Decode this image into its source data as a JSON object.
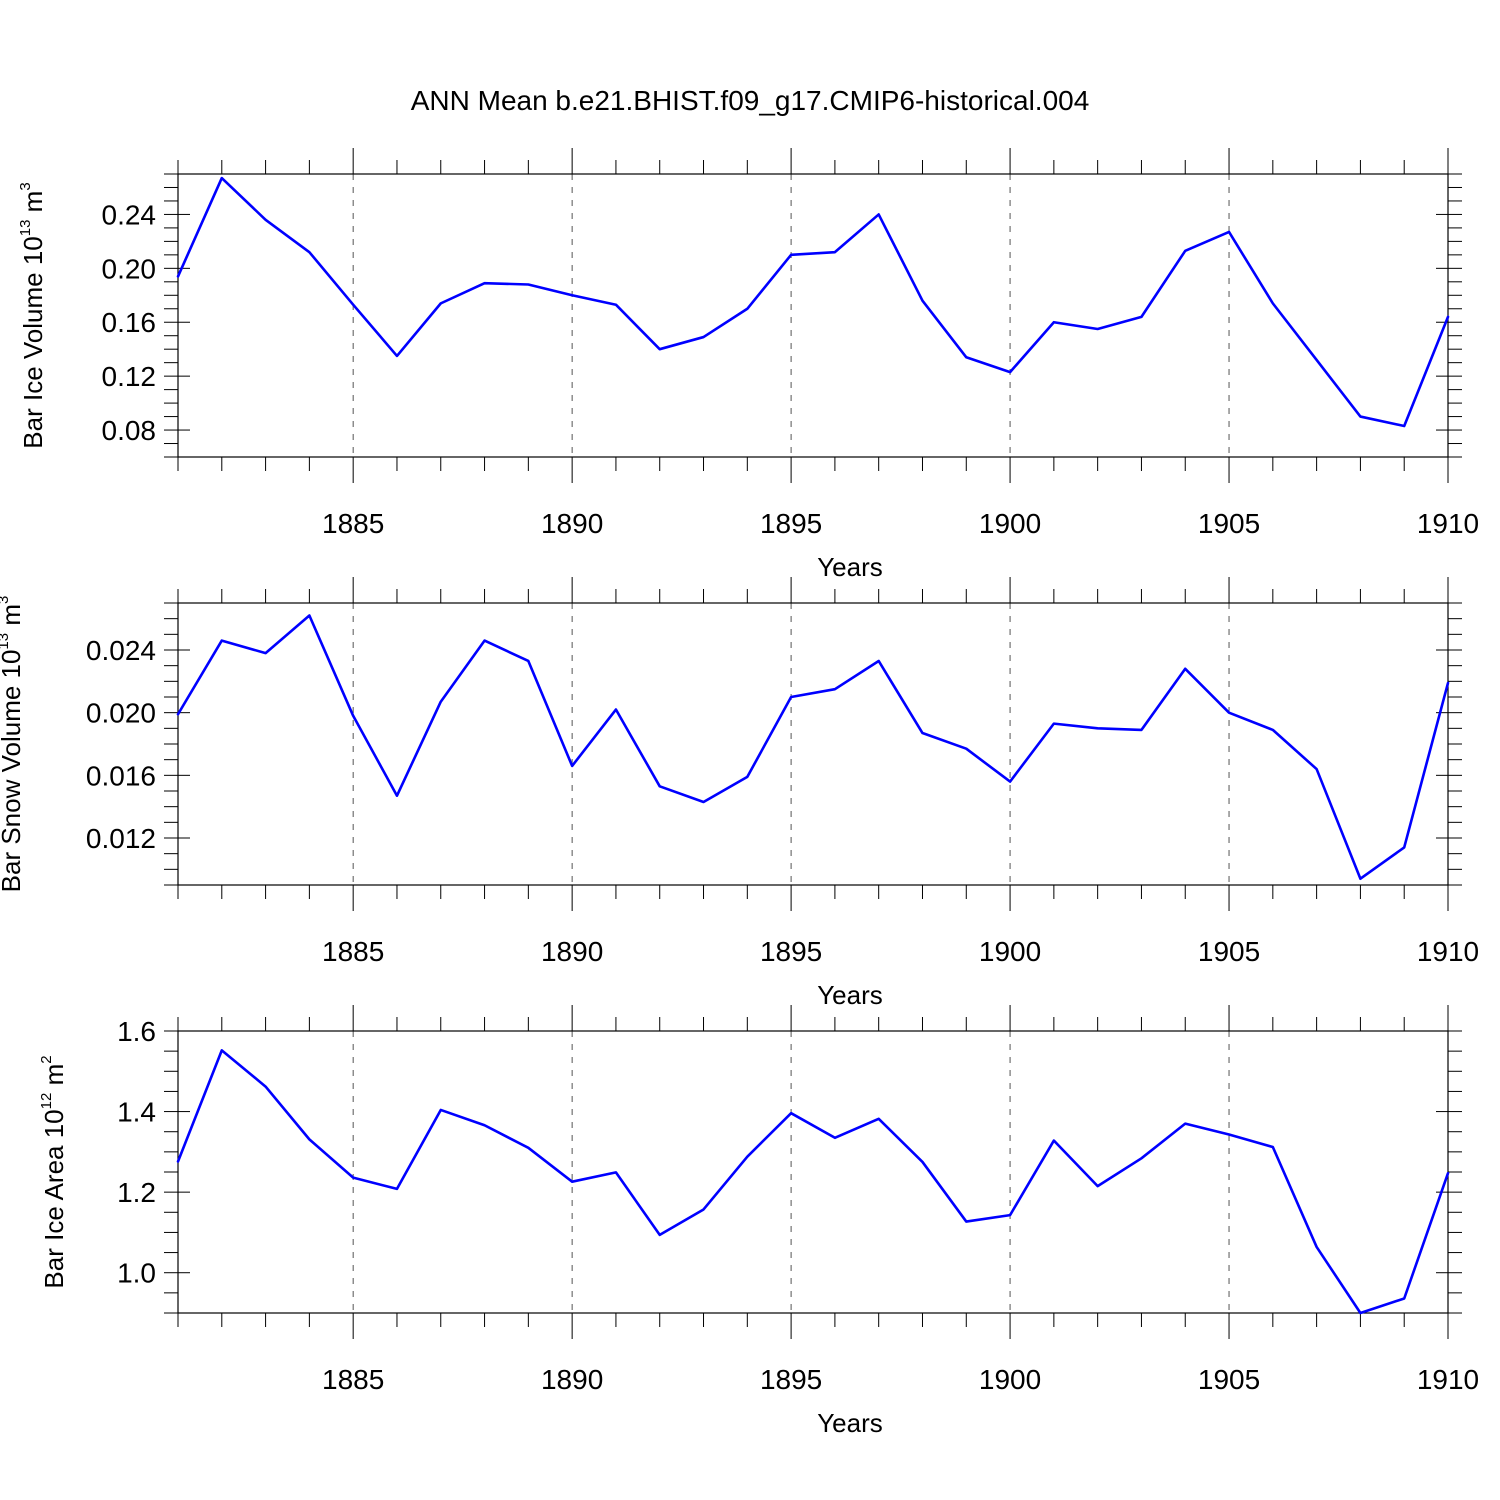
{
  "figure": {
    "title": "ANN Mean b.e21.BHIST.f09_g17.CMIP6-historical.004"
  },
  "colors": {
    "series": "#0000ff",
    "axes": "#000000",
    "grid": "#555555",
    "background": "#ffffff"
  },
  "chart_data": [
    {
      "type": "line",
      "xlabel": "Years",
      "ylabel": {
        "text": "Bar Ice Volume 10",
        "exponent": "13",
        "unit": " m",
        "unit_exponent": "3"
      },
      "xlim": [
        1881,
        1910
      ],
      "ylim": [
        0.06,
        0.27
      ],
      "xticks": [
        1885,
        1890,
        1895,
        1900,
        1905,
        1910
      ],
      "yticks": [
        0.08,
        0.12,
        0.16,
        0.2,
        0.24
      ],
      "ytick_labels": [
        "0.08",
        "0.12",
        "0.16",
        "0.20",
        "0.24"
      ],
      "grid": "vertical dashed at major x ticks",
      "x": [
        1881,
        1882,
        1883,
        1884,
        1885,
        1886,
        1887,
        1888,
        1889,
        1890,
        1891,
        1892,
        1893,
        1894,
        1895,
        1896,
        1897,
        1898,
        1899,
        1900,
        1901,
        1902,
        1903,
        1904,
        1905,
        1906,
        1907,
        1908,
        1909,
        1910
      ],
      "series": [
        {
          "values": [
            0.194,
            0.267,
            0.236,
            0.212,
            0.173,
            0.135,
            0.174,
            0.189,
            0.188,
            0.18,
            0.173,
            0.14,
            0.149,
            0.17,
            0.21,
            0.212,
            0.24,
            0.176,
            0.134,
            0.123,
            0.16,
            0.155,
            0.164,
            0.213,
            0.227,
            0.174,
            0.132,
            0.09,
            0.083,
            0.164
          ]
        }
      ]
    },
    {
      "type": "line",
      "xlabel": "Years",
      "ylabel": {
        "text": "Bar Snow Volume 10",
        "exponent": "13",
        "unit": " m",
        "unit_exponent": "3"
      },
      "xlim": [
        1881,
        1910
      ],
      "ylim": [
        0.009,
        0.027
      ],
      "xticks": [
        1885,
        1890,
        1895,
        1900,
        1905,
        1910
      ],
      "yticks": [
        0.012,
        0.016,
        0.02,
        0.024
      ],
      "ytick_labels": [
        "0.012",
        "0.016",
        "0.020",
        "0.024"
      ],
      "grid": "vertical dashed at major x ticks",
      "x": [
        1881,
        1882,
        1883,
        1884,
        1885,
        1886,
        1887,
        1888,
        1889,
        1890,
        1891,
        1892,
        1893,
        1894,
        1895,
        1896,
        1897,
        1898,
        1899,
        1900,
        1901,
        1902,
        1903,
        1904,
        1905,
        1906,
        1907,
        1908,
        1909,
        1910
      ],
      "series": [
        {
          "values": [
            0.0199,
            0.0246,
            0.0238,
            0.0262,
            0.0198,
            0.0147,
            0.0207,
            0.0246,
            0.0233,
            0.0166,
            0.0202,
            0.0153,
            0.0143,
            0.0159,
            0.021,
            0.0215,
            0.0233,
            0.0187,
            0.0177,
            0.0156,
            0.0193,
            0.019,
            0.0189,
            0.0228,
            0.02,
            0.0189,
            0.0164,
            0.0094,
            0.0114,
            0.0219
          ]
        }
      ]
    },
    {
      "type": "line",
      "xlabel": "Years",
      "ylabel": {
        "text": "Bar Ice Area 10",
        "exponent": "12",
        "unit": " m",
        "unit_exponent": "2"
      },
      "xlim": [
        1881,
        1910
      ],
      "ylim": [
        0.9,
        1.6
      ],
      "xticks": [
        1885,
        1890,
        1895,
        1900,
        1905,
        1910
      ],
      "yticks": [
        1.0,
        1.2,
        1.4,
        1.6
      ],
      "ytick_labels": [
        "1.0",
        "1.2",
        "1.4",
        "1.6"
      ],
      "grid": "vertical dashed at major x ticks",
      "x": [
        1881,
        1882,
        1883,
        1884,
        1885,
        1886,
        1887,
        1888,
        1889,
        1890,
        1891,
        1892,
        1893,
        1894,
        1895,
        1896,
        1897,
        1898,
        1899,
        1900,
        1901,
        1902,
        1903,
        1904,
        1905,
        1906,
        1907,
        1908,
        1909,
        1910
      ],
      "series": [
        {
          "values": [
            1.276,
            1.552,
            1.462,
            1.331,
            1.236,
            1.208,
            1.404,
            1.366,
            1.31,
            1.226,
            1.249,
            1.094,
            1.157,
            1.288,
            1.396,
            1.335,
            1.382,
            1.275,
            1.127,
            1.143,
            1.328,
            1.215,
            1.284,
            1.37,
            1.343,
            1.312,
            1.064,
            0.9,
            0.936,
            1.247
          ]
        }
      ]
    }
  ]
}
